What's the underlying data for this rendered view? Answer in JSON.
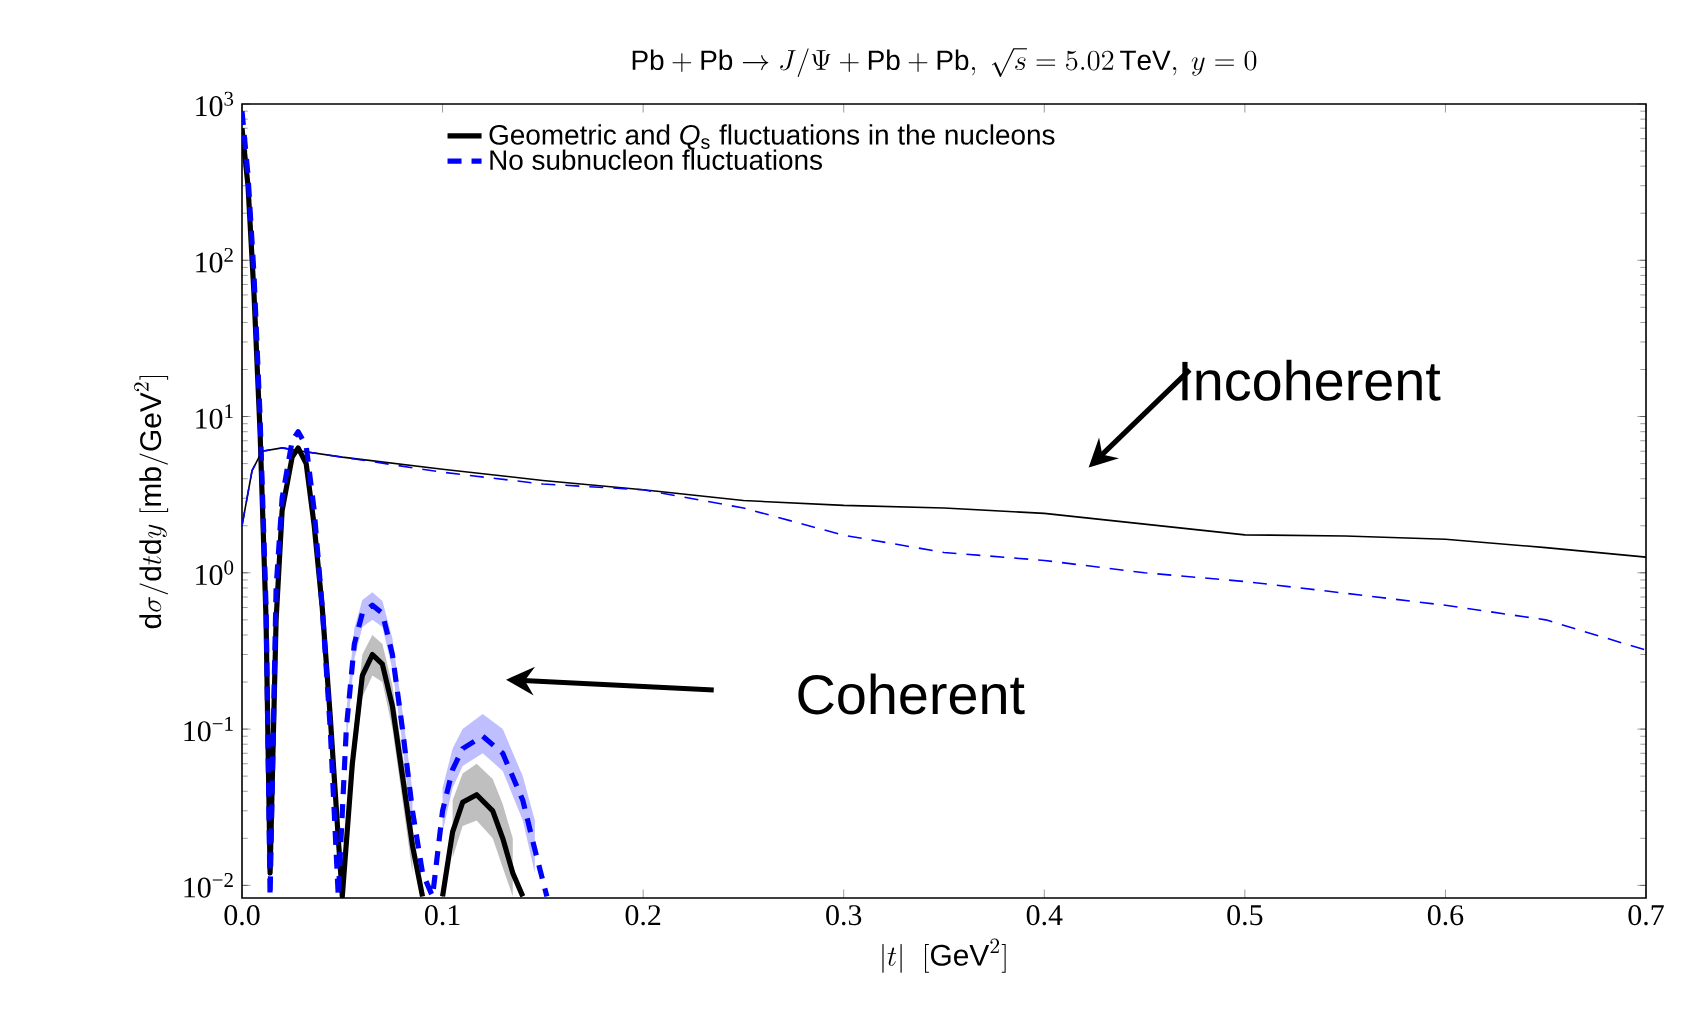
{
  "chart_data": {
    "type": "line",
    "title": "\\mathrm{Pb}+\\mathrm{Pb}\\rightarrow J/\\Psi+\\mathrm{Pb}+\\mathrm{Pb},\\ \\sqrt{s}=5.02\\,\\mathrm{TeV},\\ y=0",
    "xlabel": "|t|\\ \\ [\\mathrm{GeV}^2]",
    "ylabel": "\\mathrm{d}\\sigma/\\mathrm{d}t\\mathrm{d}y\\ [\\mathrm{mb}/\\mathrm{GeV}^2]",
    "log": "y",
    "legend": "top",
    "xlim": [
      0,
      0.7
    ],
    "ylim": [
      0.0083,
      1000
    ],
    "xticks": [
      {
        "value": 0,
        "label": "0.0"
      },
      0.1,
      0.2,
      0.3,
      0.4,
      0.5,
      0.6,
      0.7
    ],
    "yticks": [
      {
        "value": 0.01,
        "label": "10$^{−2}$"
      },
      {
        "value": 0.1,
        "label": "10$^{−1}$"
      },
      {
        "value": 1,
        "label": "10$^{0}$"
      },
      {
        "value": 10,
        "label": "10$^{1}$"
      },
      {
        "value": 100,
        "label": "10$^{2}$"
      },
      {
        "value": 1000,
        "label": "10$^{3}$"
      }
    ],
    "annotations": [
      "Incoherent",
      "Coherent"
    ],
    "series": [
      {
        "name": "Geometric and *Q*$_{s}$ fluctuations in the nucleons",
        "color": "#000000",
        "line_style": "solid",
        "x": [
          0,
          0.003,
          0.006,
          0.009,
          0.012,
          0.014,
          0.017,
          0.02,
          0.025,
          0.028,
          0.032,
          0.036,
          0.04,
          0.044,
          0.048,
          0.05,
          0.055,
          0.06,
          0.065,
          0.07,
          0.075,
          0.08,
          0.085,
          0.09,
          0.095,
          0.1,
          0.105,
          0.11,
          0.117,
          0.125,
          0.13,
          0.135,
          0.14
        ],
        "values": [
          700,
          300,
          60,
          8,
          0.5,
          0.012,
          0.5,
          2.5,
          5.5,
          6.3,
          5,
          2,
          0.6,
          0.12,
          0.02,
          0.0085,
          0.06,
          0.22,
          0.3,
          0.26,
          0.14,
          0.05,
          0.018,
          0.0085,
          null,
          0.0085,
          0.022,
          0.034,
          0.038,
          0.03,
          0.02,
          0.012,
          0.0085
        ],
        "lower": [
          null,
          null,
          null,
          null,
          null,
          null,
          null,
          null,
          null,
          null,
          null,
          null,
          null,
          null,
          null,
          null,
          0.045,
          0.16,
          0.22,
          0.2,
          0.1,
          0.035,
          0.012,
          null,
          null,
          null,
          0.015,
          0.024,
          0.026,
          0.02,
          0.013,
          0.0085,
          null
        ],
        "upper": [
          null,
          null,
          null,
          null,
          null,
          null,
          null,
          null,
          null,
          null,
          null,
          null,
          null,
          null,
          null,
          null,
          0.08,
          0.3,
          0.4,
          0.35,
          0.19,
          0.07,
          0.025,
          null,
          null,
          null,
          0.035,
          0.052,
          0.06,
          0.048,
          0.033,
          0.02,
          null
        ]
      },
      {
        "name": "No subnucleon fluctuations",
        "color": "#0000ff",
        "line_style": "dashed",
        "x": [
          0,
          0.003,
          0.006,
          0.009,
          0.012,
          0.014,
          0.017,
          0.02,
          0.025,
          0.028,
          0.032,
          0.036,
          0.04,
          0.044,
          0.048,
          0.052,
          0.056,
          0.06,
          0.065,
          0.07,
          0.075,
          0.08,
          0.085,
          0.09,
          0.095,
          0.1,
          0.105,
          0.11,
          0.12,
          0.13,
          0.14,
          0.146,
          0.152
        ],
        "values": [
          900,
          350,
          80,
          10,
          0.6,
          0.0085,
          0.8,
          3,
          7,
          8,
          6.5,
          2.5,
          0.6,
          0.1,
          0.0085,
          0.1,
          0.35,
          0.55,
          0.62,
          0.55,
          0.3,
          0.1,
          0.03,
          0.012,
          0.0085,
          0.03,
          0.055,
          0.075,
          0.09,
          0.07,
          0.035,
          0.017,
          0.0085
        ],
        "lower": [
          null,
          null,
          null,
          null,
          null,
          null,
          null,
          null,
          null,
          null,
          null,
          null,
          null,
          null,
          null,
          0.08,
          0.28,
          0.45,
          0.5,
          0.45,
          0.24,
          0.08,
          0.022,
          null,
          null,
          0.022,
          0.042,
          0.058,
          0.07,
          0.054,
          0.026,
          0.012,
          null
        ],
        "upper": [
          null,
          null,
          null,
          null,
          null,
          null,
          null,
          null,
          null,
          null,
          null,
          null,
          null,
          null,
          null,
          0.13,
          0.44,
          0.67,
          0.75,
          0.66,
          0.38,
          0.13,
          0.04,
          null,
          null,
          0.042,
          0.075,
          0.1,
          0.125,
          0.1,
          0.05,
          0.026,
          null
        ]
      },
      {
        "color": "#000000",
        "line_style": "solid",
        "x": [
          0,
          0.005,
          0.01,
          0.02,
          0.03,
          0.05,
          0.1,
          0.15,
          0.2,
          0.25,
          0.3,
          0.35,
          0.4,
          0.45,
          0.5,
          0.55,
          0.6,
          0.65,
          0.7
        ],
        "values": [
          2,
          4.5,
          6,
          6.3,
          6,
          5.5,
          4.6,
          3.9,
          3.4,
          2.9,
          2.7,
          2.6,
          2.4,
          2.05,
          1.75,
          1.72,
          1.64,
          1.45,
          1.26
        ]
      },
      {
        "color": "#0000ff",
        "line_style": "dashed",
        "x": [
          0,
          0.005,
          0.01,
          0.02,
          0.03,
          0.05,
          0.1,
          0.15,
          0.2,
          0.25,
          0.3,
          0.35,
          0.4,
          0.45,
          0.5,
          0.55,
          0.6,
          0.65,
          0.7
        ],
        "values": [
          2,
          4.5,
          6,
          6.3,
          6,
          5.5,
          4.4,
          3.7,
          3.4,
          2.6,
          1.74,
          1.35,
          1.2,
          1.0,
          0.88,
          0.74,
          0.62,
          0.5,
          0.32
        ]
      }
    ]
  }
}
